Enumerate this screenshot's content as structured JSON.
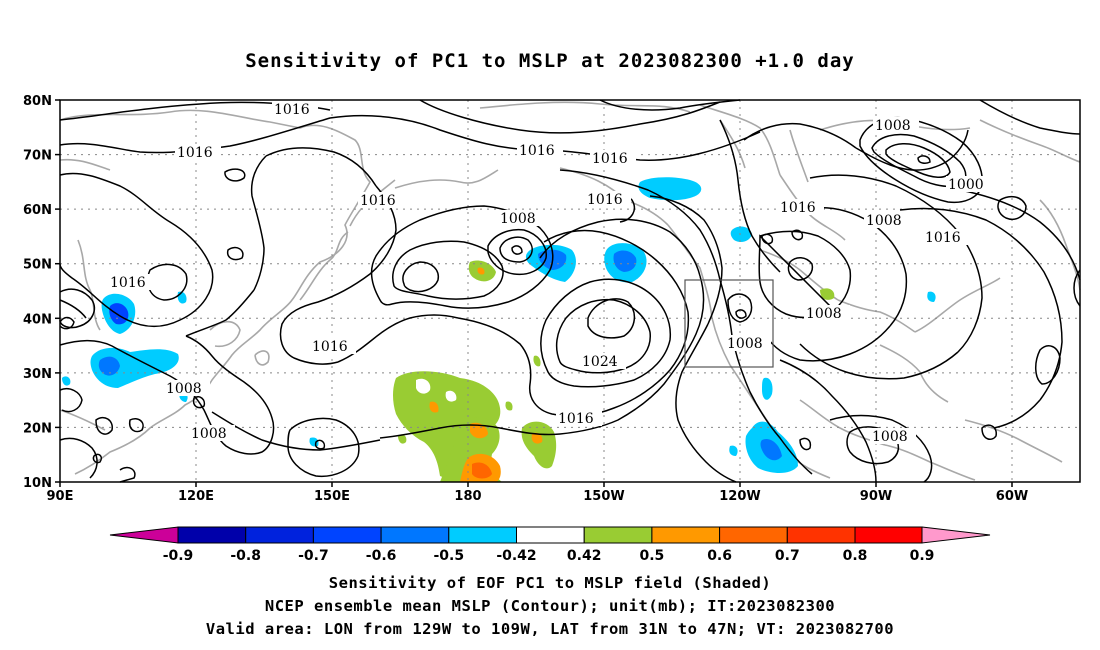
{
  "title": "Sensitivity of PC1 to MSLP at 2023082300 +1.0 day",
  "lat_labels": [
    "80N",
    "70N",
    "60N",
    "50N",
    "40N",
    "30N",
    "20N",
    "10N"
  ],
  "lon_labels": [
    "90E",
    "120E",
    "150E",
    "180",
    "150W",
    "120W",
    "90W",
    "60W"
  ],
  "colorbar": {
    "labels": [
      "-0.9",
      "-0.8",
      "-0.7",
      "-0.6",
      "-0.5",
      "-0.42",
      "0.42",
      "0.5",
      "0.6",
      "0.7",
      "0.8",
      "0.9"
    ],
    "colors": [
      "#cc0099",
      "#0000aa",
      "#0022dd",
      "#0044ff",
      "#0077ff",
      "#2ab6ff",
      "#00ccff",
      "#ffffff",
      "#99cc33",
      "#ff9900",
      "#ff6600",
      "#ff3300",
      "#ff0000",
      "#ff99cc"
    ]
  },
  "contour_labels": [
    "1016",
    "1016",
    "1016",
    "1016",
    "1016",
    "1016",
    "1016",
    "1016",
    "1016",
    "1016",
    "1016",
    "1008",
    "1008",
    "1008",
    "1008",
    "1008",
    "1008",
    "1008",
    "1000",
    "1024"
  ],
  "captions": [
    "Sensitivity of EOF PC1 to MSLP field (Shaded)",
    "NCEP ensemble mean MSLP (Contour); unit(mb); IT:2023082300",
    "Valid area: LON from 129W to 109W, LAT from 31N to 47N; VT: 2023082700"
  ]
}
